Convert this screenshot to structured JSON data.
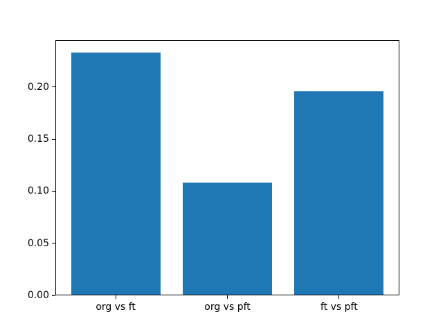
{
  "chart_data": {
    "type": "bar",
    "title": "",
    "xlabel": "",
    "ylabel": "",
    "categories": [
      "org vs ft",
      "org vs pft",
      "ft vs pft"
    ],
    "values": [
      0.233,
      0.108,
      0.196
    ],
    "ylim": [
      0,
      0.245
    ],
    "ytick_labels": [
      "0.00",
      "0.05",
      "0.10",
      "0.15",
      "0.20"
    ],
    "bar_color": "#1f77b4",
    "axis_color": "#000000",
    "background_color": "#ffffff",
    "bar_width_fraction": 0.8,
    "x_margin_fraction": 0.05,
    "grid": false,
    "legend": false
  }
}
